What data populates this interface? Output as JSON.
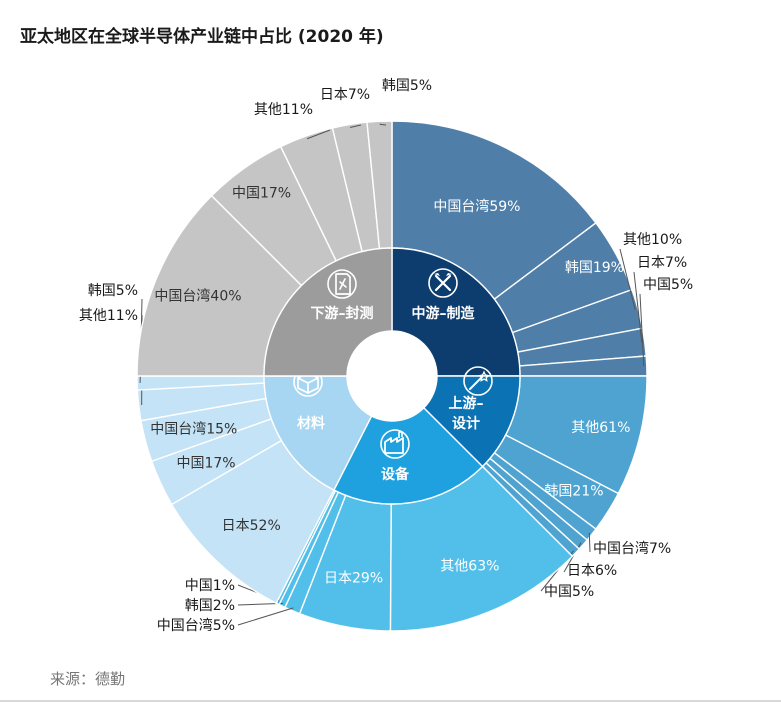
{
  "title": "亚太地区在全球半导体产业链中占比 (2020 年)",
  "source": "来源：德勤",
  "chart_data": {
    "type": "pie",
    "title": "亚太地区在全球半导体产业链中占比 (2020 年)",
    "segments": [
      {
        "name": "中游–制造",
        "icon": "tools-icon",
        "color": "#0c3d6e",
        "share": 25,
        "items": [
          {
            "region": "中国台湾",
            "value": 59,
            "color": "#4f7fa8"
          },
          {
            "region": "韩国",
            "value": 19,
            "color": "#4f7fa8"
          },
          {
            "region": "其他",
            "value": 10,
            "color": "#4f7fa8"
          },
          {
            "region": "日本",
            "value": 7,
            "color": "#4f7fa8"
          },
          {
            "region": "中国",
            "value": 5,
            "color": "#4f7fa8"
          }
        ]
      },
      {
        "name": "上游–设计",
        "icon": "wand-icon",
        "color": "#0b72b3",
        "share": 12.5,
        "items": [
          {
            "region": "其他",
            "value": 61,
            "color": "#4fa3d1"
          },
          {
            "region": "韩国",
            "value": 21,
            "color": "#4fa3d1"
          },
          {
            "region": "中国台湾",
            "value": 7,
            "color": "#4fa3d1"
          },
          {
            "region": "日本",
            "value": 6,
            "color": "#4fa3d1"
          },
          {
            "region": "中国",
            "value": 5,
            "color": "#4fa3d1"
          }
        ]
      },
      {
        "name": "设备",
        "icon": "factory-icon",
        "color": "#1ea1de",
        "share": 20,
        "items": [
          {
            "region": "其他",
            "value": 63,
            "color": "#51bfe9"
          },
          {
            "region": "日本",
            "value": 29,
            "color": "#51bfe9"
          },
          {
            "region": "中国台湾",
            "value": 5,
            "color": "#51bfe9"
          },
          {
            "region": "韩国",
            "value": 2,
            "color": "#51bfe9"
          },
          {
            "region": "中国",
            "value": 1,
            "color": "#51bfe9"
          }
        ]
      },
      {
        "name": "材料",
        "icon": "box-icon",
        "color": "#a6d6f1",
        "share": 17.5,
        "items": [
          {
            "region": "日本",
            "value": 52,
            "color": "#c5e3f6"
          },
          {
            "region": "中国",
            "value": 17,
            "color": "#c5e3f6"
          },
          {
            "region": "中国台湾",
            "value": 15,
            "color": "#c5e3f6"
          },
          {
            "region": "其他",
            "value": 11,
            "color": "#c5e3f6"
          },
          {
            "region": "韩国",
            "value": 5,
            "color": "#c5e3f6"
          }
        ]
      },
      {
        "name": "下游–封测",
        "icon": "chip-icon",
        "color": "#9c9c9c",
        "share": 25,
        "items": [
          {
            "region": "中国台湾",
            "value": 40,
            "color": "#c5c5c5"
          },
          {
            "region": "中国",
            "value": 17,
            "color": "#c5c5c5"
          },
          {
            "region": "其他",
            "value": 11,
            "color": "#c5c5c5"
          },
          {
            "region": "日本",
            "value": 7,
            "color": "#c5c5c5"
          },
          {
            "region": "韩国",
            "value": 5,
            "color": "#c5c5c5"
          }
        ]
      }
    ]
  }
}
